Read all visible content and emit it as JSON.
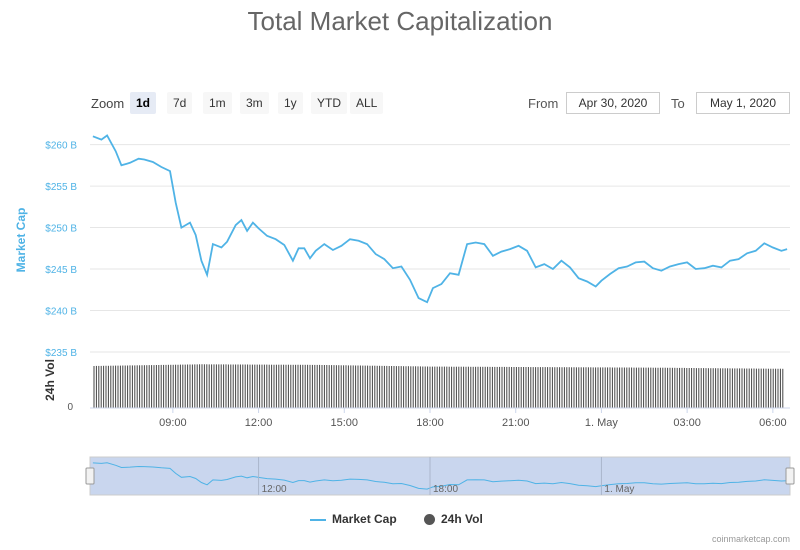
{
  "title": "Total Market Capitalization",
  "zoom": {
    "label": "Zoom",
    "buttons": [
      "1d",
      "7d",
      "1m",
      "3m",
      "1y",
      "YTD",
      "ALL"
    ],
    "active": "1d"
  },
  "range": {
    "from_label": "From",
    "from_value": "Apr 30, 2020",
    "to_label": "To",
    "to_value": "May 1, 2020"
  },
  "legend": {
    "market_cap": "Market Cap",
    "vol": "24h Vol"
  },
  "credit": "coinmarketcap.com",
  "colors": {
    "line": "#4fb3e6",
    "navigator_fill": "#c9d6ee",
    "bars": "#444444"
  },
  "chart_data": {
    "type": "line",
    "ylabel": "Market Cap",
    "ylabel2": "24h Vol",
    "ylim": [
      235,
      262
    ],
    "y_ticks": [
      "$235 B",
      "$240 B",
      "$245 B",
      "$250 B",
      "$255 B",
      "$260 B"
    ],
    "y_tick_values": [
      235,
      240,
      245,
      250,
      255,
      260
    ],
    "vol_tick": "0",
    "x_tick_labels": [
      "09:00",
      "12:00",
      "15:00",
      "18:00",
      "21:00",
      "1. May",
      "03:00",
      "06:00"
    ],
    "x_tick_hours": [
      9,
      12,
      15,
      18,
      21,
      24,
      27,
      30
    ],
    "x_range_hours": [
      6.1,
      30.6
    ],
    "navigator_labels": [
      "12:00",
      "18:00",
      "1. May"
    ],
    "navigator_label_hours": [
      12,
      18,
      24
    ],
    "series": [
      {
        "name": "Market Cap",
        "x": [
          6.2,
          6.5,
          6.7,
          7.0,
          7.2,
          7.5,
          7.8,
          8.0,
          8.3,
          8.6,
          8.9,
          9.1,
          9.3,
          9.6,
          9.8,
          10.0,
          10.2,
          10.4,
          10.7,
          10.9,
          11.2,
          11.4,
          11.6,
          11.8,
          12.0,
          12.3,
          12.6,
          12.9,
          13.2,
          13.4,
          13.6,
          13.8,
          14.0,
          14.3,
          14.6,
          14.9,
          15.2,
          15.5,
          15.8,
          16.1,
          16.4,
          16.7,
          17.0,
          17.3,
          17.6,
          17.9,
          18.1,
          18.4,
          18.7,
          19.0,
          19.3,
          19.6,
          19.9,
          20.2,
          20.5,
          20.8,
          21.1,
          21.4,
          21.7,
          22.0,
          22.3,
          22.6,
          22.9,
          23.2,
          23.5,
          23.8,
          24.0,
          24.3,
          24.6,
          24.9,
          25.2,
          25.5,
          25.8,
          26.1,
          26.4,
          26.7,
          27.0,
          27.3,
          27.6,
          27.9,
          28.2,
          28.5,
          28.8,
          29.1,
          29.4,
          29.7,
          30.0,
          30.3,
          30.5
        ],
        "values": [
          261.0,
          260.6,
          261.1,
          259.2,
          257.5,
          257.8,
          258.3,
          258.2,
          257.9,
          257.3,
          256.8,
          253.0,
          250.0,
          250.6,
          249.1,
          246.0,
          244.3,
          248.0,
          247.6,
          248.3,
          250.3,
          250.9,
          249.6,
          250.6,
          249.9,
          249.0,
          248.6,
          247.9,
          246.0,
          247.5,
          247.5,
          246.3,
          247.2,
          248.0,
          247.3,
          247.8,
          248.6,
          248.4,
          248.0,
          246.8,
          246.2,
          245.1,
          245.3,
          243.7,
          241.5,
          241.0,
          242.7,
          243.2,
          244.5,
          244.3,
          248.0,
          248.2,
          248.0,
          246.6,
          247.1,
          247.4,
          247.8,
          247.2,
          245.2,
          245.6,
          245.0,
          246.0,
          245.2,
          243.9,
          243.5,
          242.9,
          243.6,
          244.4,
          245.1,
          245.3,
          245.8,
          245.9,
          245.1,
          244.8,
          245.3,
          245.6,
          245.8,
          245.0,
          245.1,
          245.4,
          245.2,
          246.0,
          246.2,
          246.9,
          247.2,
          248.1,
          247.6,
          247.2,
          247.4
        ]
      },
      {
        "name": "24h Vol",
        "x": [
          6.2,
          10.0,
          14.0,
          18.0,
          22.0,
          26.0,
          28.0,
          30.5
        ],
        "values": [
          0.75,
          0.78,
          0.77,
          0.74,
          0.73,
          0.72,
          0.71,
          0.7
        ]
      }
    ]
  }
}
